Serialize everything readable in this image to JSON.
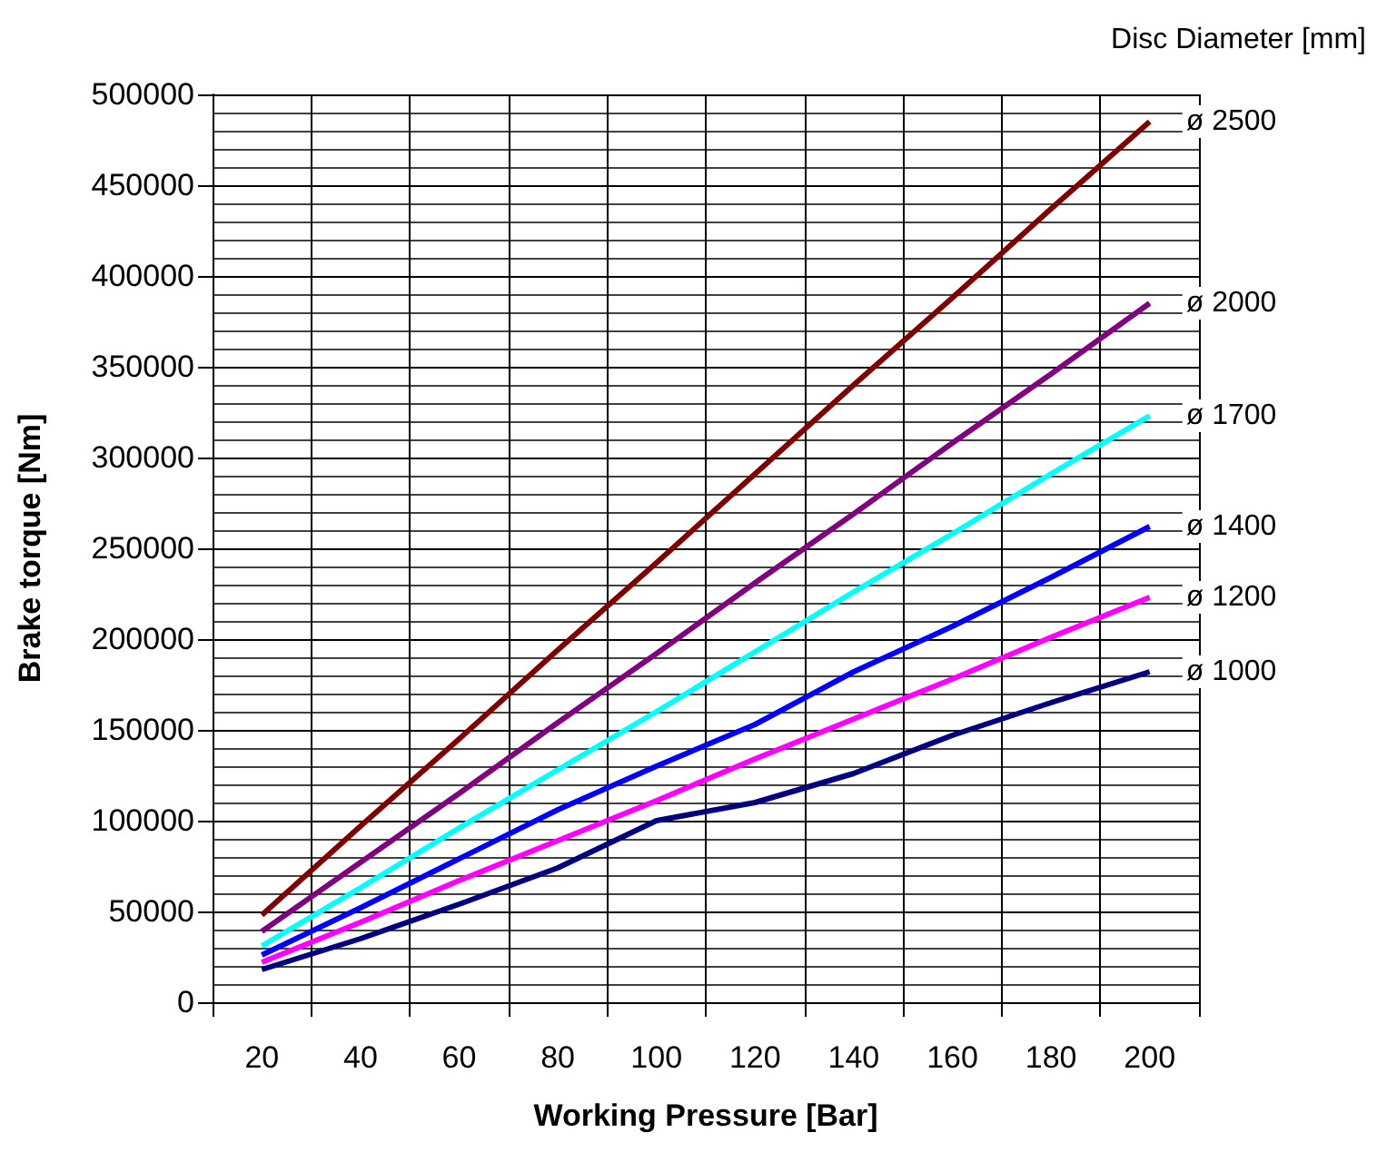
{
  "chart_data": {
    "type": "line",
    "xlabel": "Working Pressure [Bar]",
    "ylabel": "Brake torque [Nm]",
    "legend_title": "Disc Diameter [mm]",
    "x": [
      20,
      40,
      60,
      80,
      100,
      120,
      140,
      160,
      180,
      200
    ],
    "xlim": [
      10,
      210
    ],
    "xticks": [
      20,
      40,
      60,
      80,
      100,
      120,
      140,
      160,
      180,
      200
    ],
    "ylim": [
      0,
      500000
    ],
    "yticks": [
      0,
      50000,
      100000,
      150000,
      200000,
      250000,
      300000,
      350000,
      400000,
      450000,
      500000
    ],
    "grid": true,
    "marker": "none",
    "line_style": "solid",
    "series": [
      {
        "name": "ø 2500",
        "color": "#800000",
        "values": [
          48000,
          97000,
          145000,
          194000,
          242000,
          291000,
          340000,
          388000,
          437000,
          485000
        ]
      },
      {
        "name": "ø 2000",
        "color": "#800080",
        "values": [
          39000,
          77000,
          115000,
          154000,
          192000,
          231000,
          269000,
          308000,
          346000,
          385000
        ]
      },
      {
        "name": "ø 1700",
        "color": "#00ffff",
        "values": [
          31000,
          63000,
          96000,
          128000,
          160000,
          193000,
          226000,
          258000,
          291000,
          323000
        ]
      },
      {
        "name": "ø 1400",
        "color": "#0000ff",
        "values": [
          26000,
          52000,
          79000,
          106000,
          130000,
          153000,
          182000,
          207000,
          234000,
          262000
        ]
      },
      {
        "name": "ø 1200",
        "color": "#ff00ff",
        "values": [
          22000,
          44000,
          67000,
          89000,
          111000,
          134000,
          156000,
          178000,
          201000,
          223000
        ]
      },
      {
        "name": "ø 1000",
        "color": "#000080",
        "values": [
          18000,
          35000,
          54000,
          74000,
          100000,
          110000,
          126000,
          147000,
          165000,
          182000
        ]
      }
    ]
  }
}
